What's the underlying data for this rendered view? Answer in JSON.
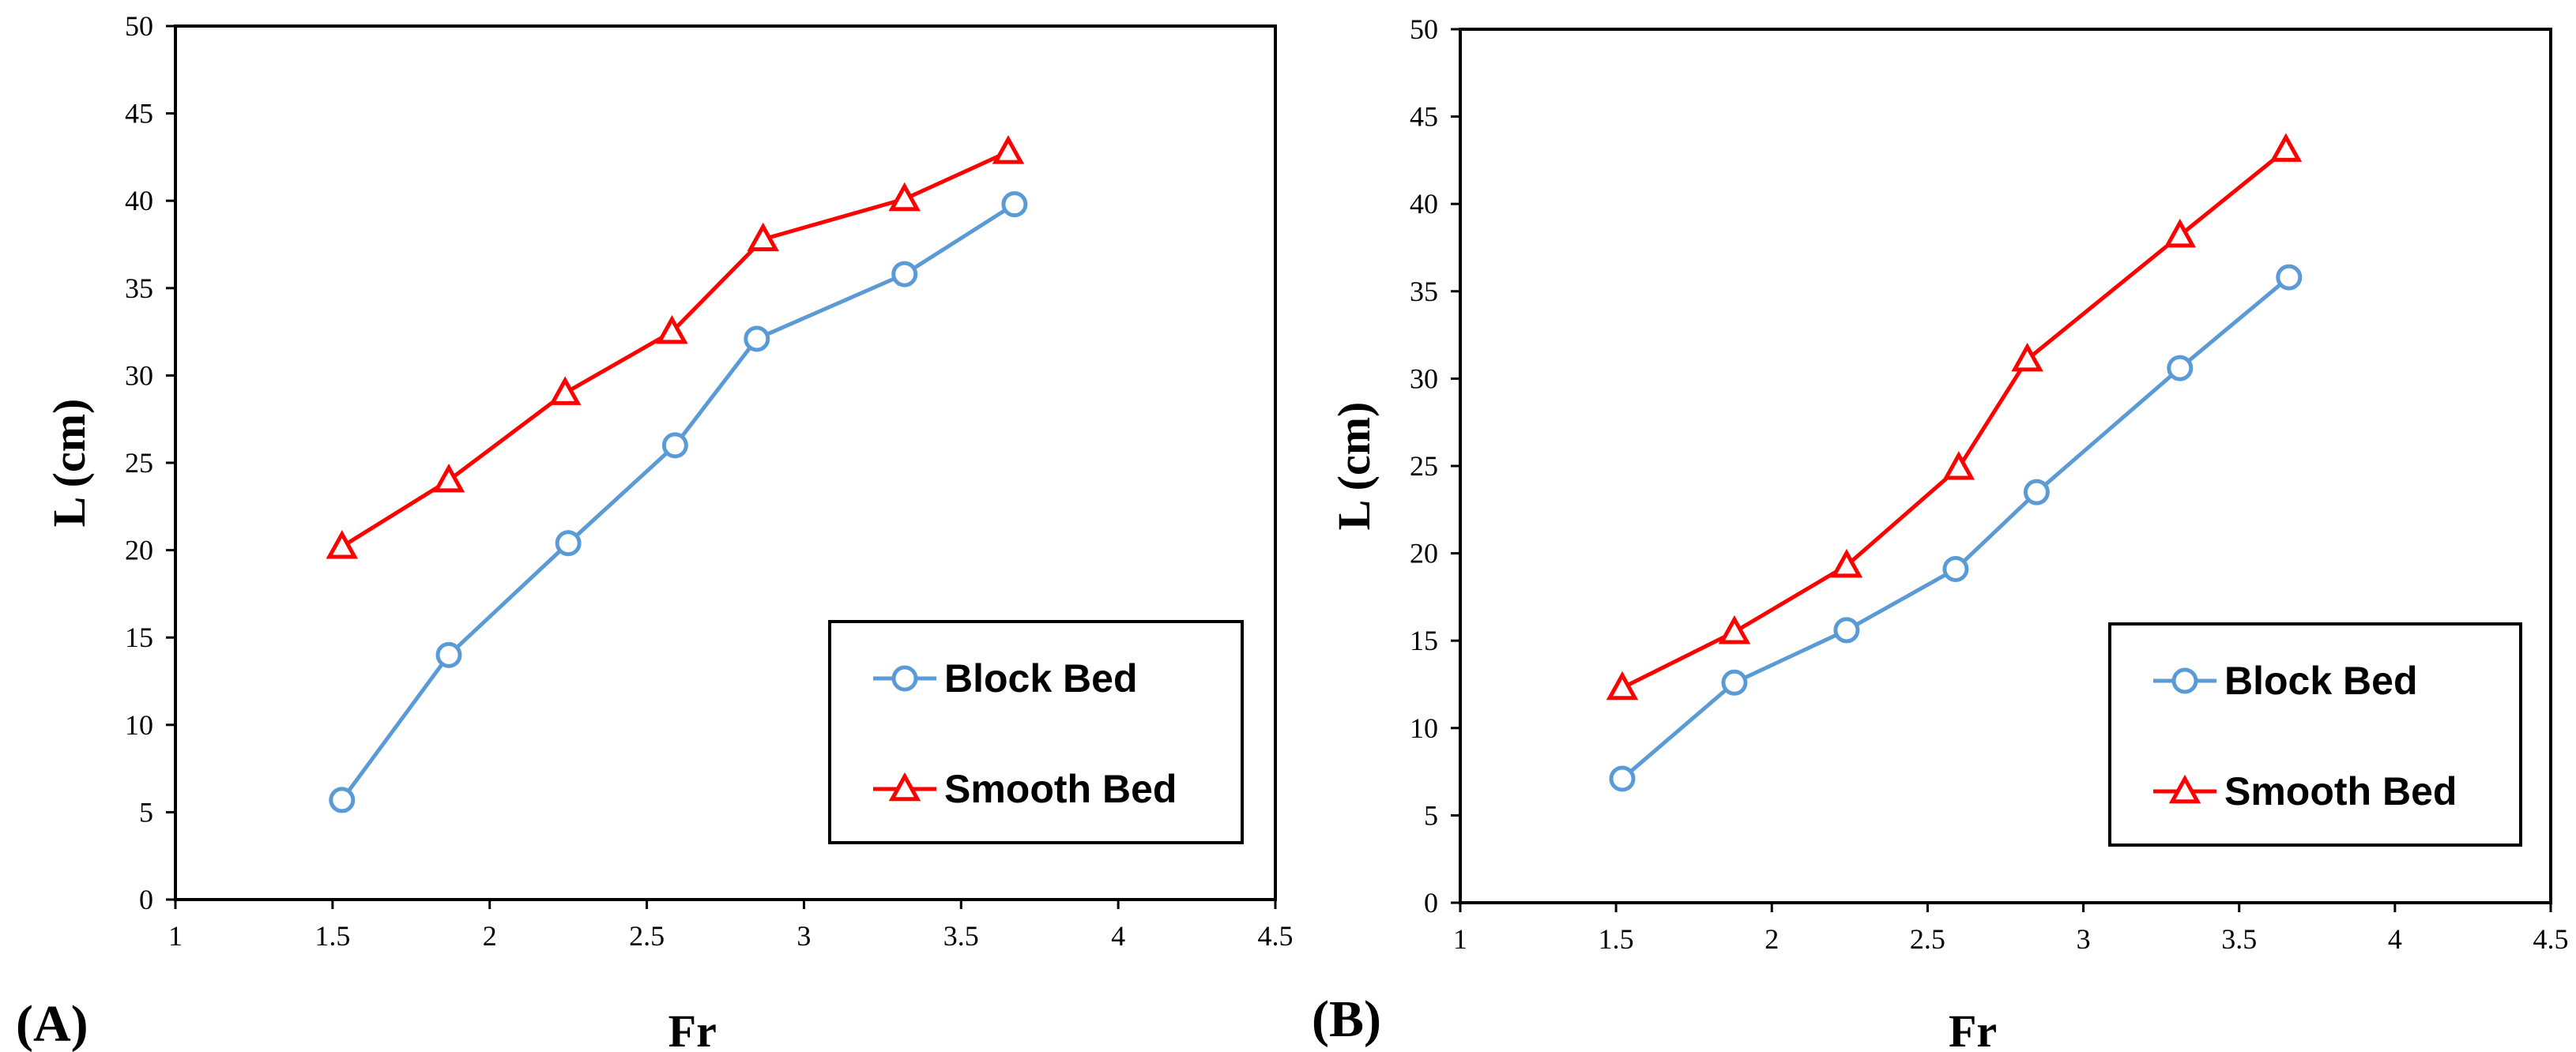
{
  "figure": {
    "panels": [
      "(A)",
      "(B)"
    ]
  },
  "colors": {
    "block": "#5B9BD5",
    "smooth": "#FF0000",
    "axis": "#000000"
  },
  "chart_data": [
    {
      "type": "line",
      "panel_label": "(A)",
      "xlabel": "Fr",
      "ylabel": "L (cm)",
      "xlim": [
        1,
        4.5
      ],
      "ylim": [
        0,
        50
      ],
      "xticks": [
        1,
        1.5,
        2,
        2.5,
        3,
        3.5,
        4,
        4.5
      ],
      "yticks": [
        0,
        5,
        10,
        15,
        20,
        25,
        30,
        35,
        40,
        45,
        50
      ],
      "grid": false,
      "legend_position": "bottom-right",
      "series": [
        {
          "name": "Block Bed",
          "marker": "circle",
          "color": "#5B9BD5",
          "x": [
            1.53,
            1.87,
            2.25,
            2.59,
            2.85,
            3.32,
            3.67
          ],
          "y": [
            5.7,
            14.0,
            20.4,
            26.0,
            32.1,
            35.8,
            39.8
          ]
        },
        {
          "name": "Smooth Bed",
          "marker": "triangle",
          "color": "#FF0000",
          "x": [
            1.53,
            1.87,
            2.24,
            2.58,
            2.87,
            3.32,
            3.65
          ],
          "y": [
            20.2,
            24.0,
            29.0,
            32.5,
            37.8,
            40.1,
            42.8
          ]
        }
      ]
    },
    {
      "type": "line",
      "panel_label": "(B)",
      "xlabel": "Fr",
      "ylabel": "L (cm)",
      "xlim": [
        1,
        4.5
      ],
      "ylim": [
        0,
        50
      ],
      "xticks": [
        1,
        1.5,
        2,
        2.5,
        3,
        3.5,
        4,
        4.5
      ],
      "yticks": [
        0,
        5,
        10,
        15,
        20,
        25,
        30,
        35,
        40,
        45,
        50
      ],
      "grid": false,
      "legend_position": "bottom-right",
      "series": [
        {
          "name": "Block Bed",
          "marker": "circle",
          "color": "#5B9BD5",
          "x": [
            1.52,
            1.88,
            2.24,
            2.59,
            2.85,
            3.31,
            3.66
          ],
          "y": [
            7.1,
            12.6,
            15.6,
            19.1,
            23.5,
            30.6,
            35.8
          ]
        },
        {
          "name": "Smooth Bed",
          "marker": "triangle",
          "color": "#FF0000",
          "x": [
            1.52,
            1.88,
            2.24,
            2.6,
            2.82,
            3.31,
            3.65
          ],
          "y": [
            12.3,
            15.5,
            19.3,
            24.9,
            31.1,
            38.2,
            43.1
          ]
        }
      ]
    }
  ]
}
